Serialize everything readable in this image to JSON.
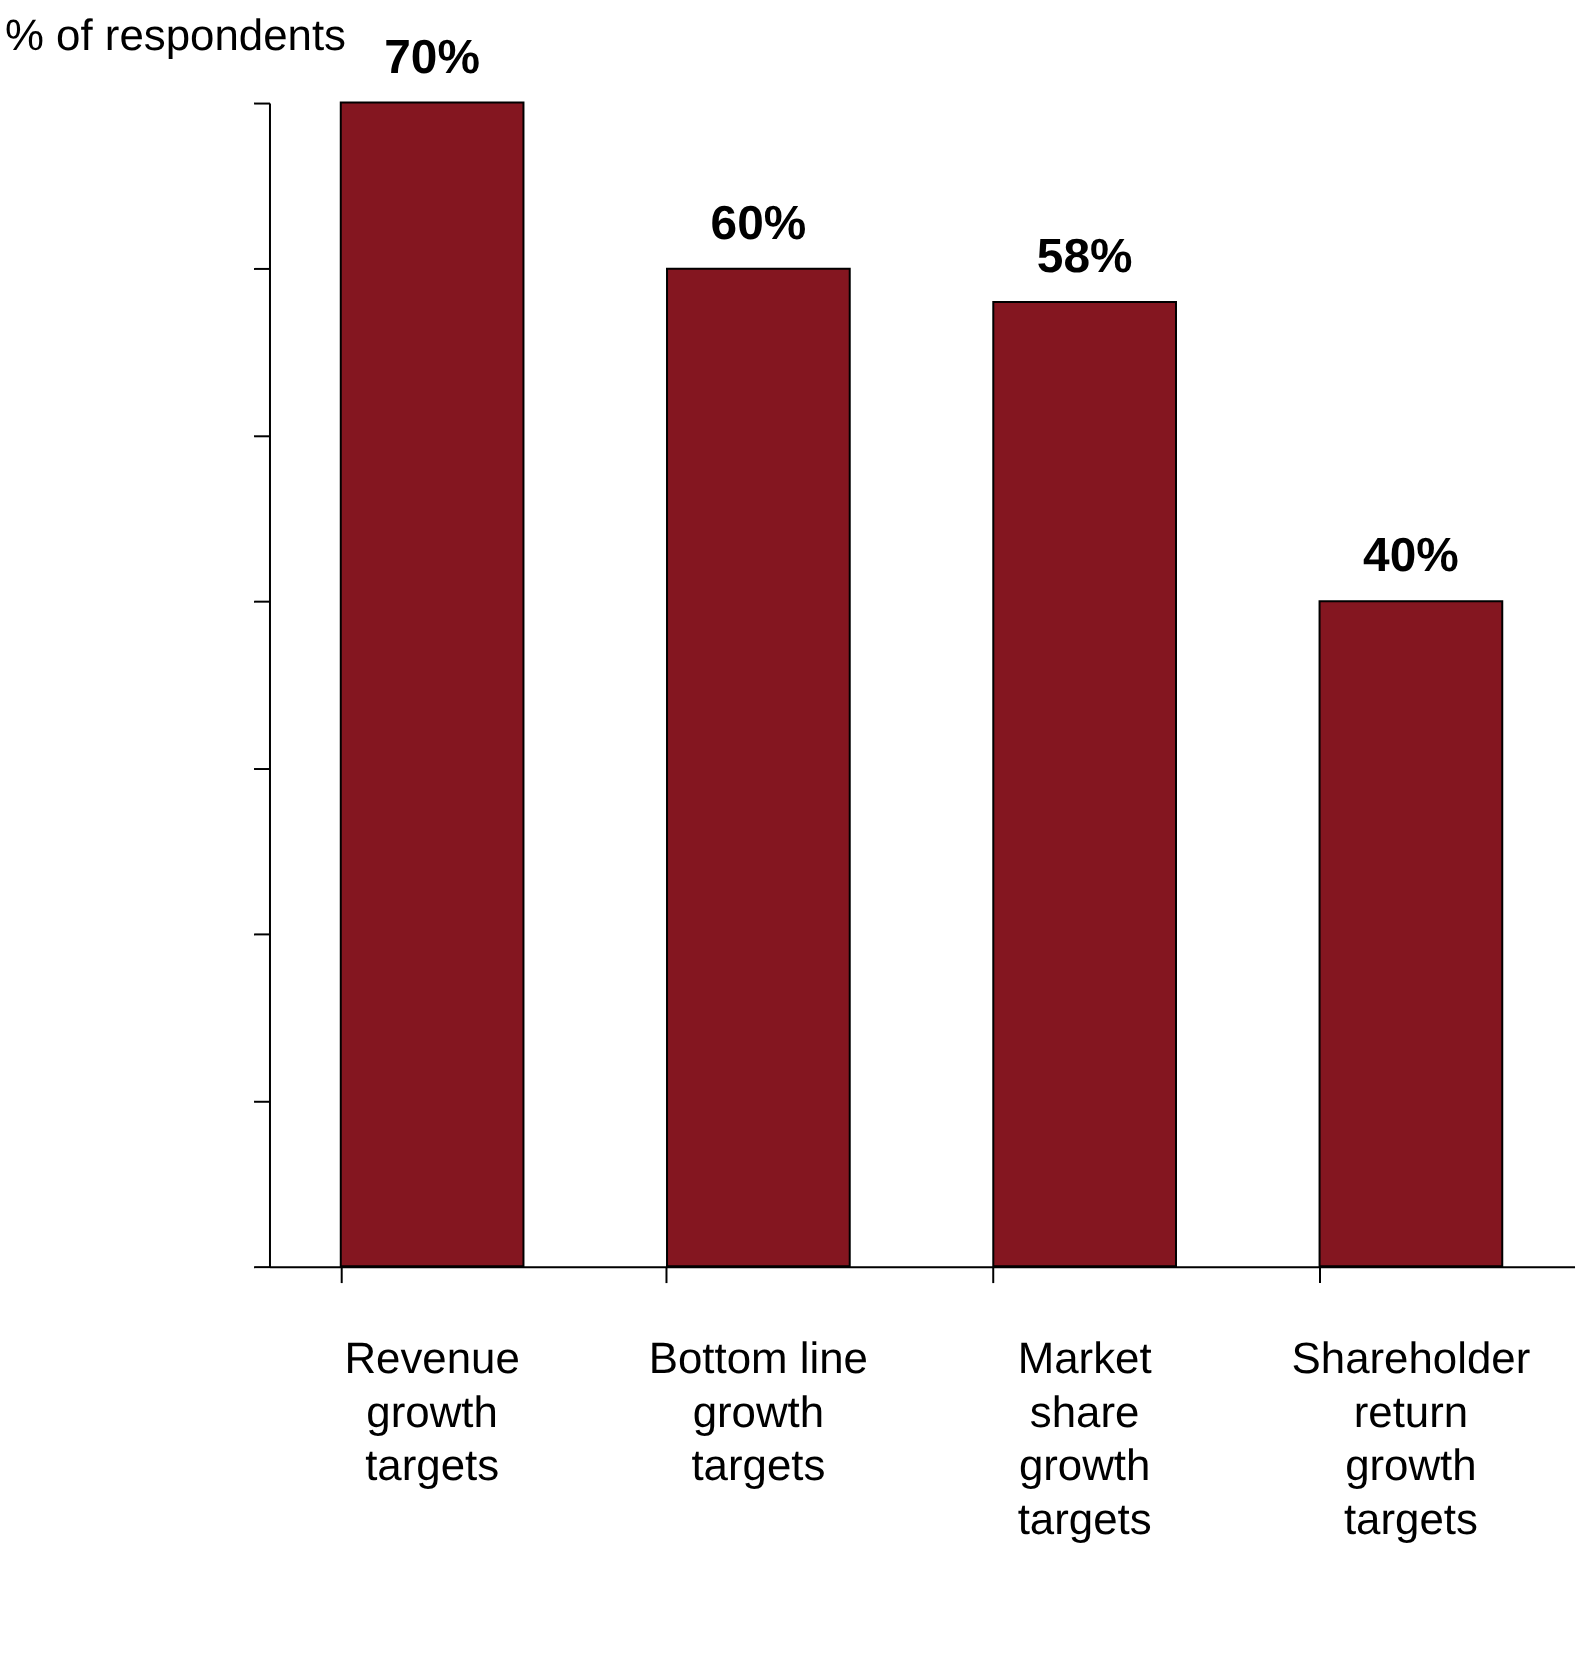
{
  "chart_data": {
    "type": "bar",
    "ylabel": "% of respondents",
    "categories": [
      "Revenue growth targets",
      "Bottom line growth targets",
      "Market share growth targets",
      "Shareholder return growth targets"
    ],
    "values": [
      70,
      60,
      58,
      40
    ],
    "value_labels": [
      "70%",
      "60%",
      "58%",
      "40%"
    ],
    "color": "#841620",
    "ylim": [
      0,
      70
    ],
    "yticks": [
      {
        "value": 0,
        "label": null
      },
      {
        "value": 10,
        "label": null
      },
      {
        "value": 20,
        "label": null
      },
      {
        "value": 30,
        "label": null
      },
      {
        "value": 40,
        "label": null
      },
      {
        "value": 50,
        "label": null
      },
      {
        "value": 60,
        "label": null
      },
      {
        "value": 70,
        "label": null
      }
    ],
    "tick_labels": "x",
    "grid": false
  }
}
